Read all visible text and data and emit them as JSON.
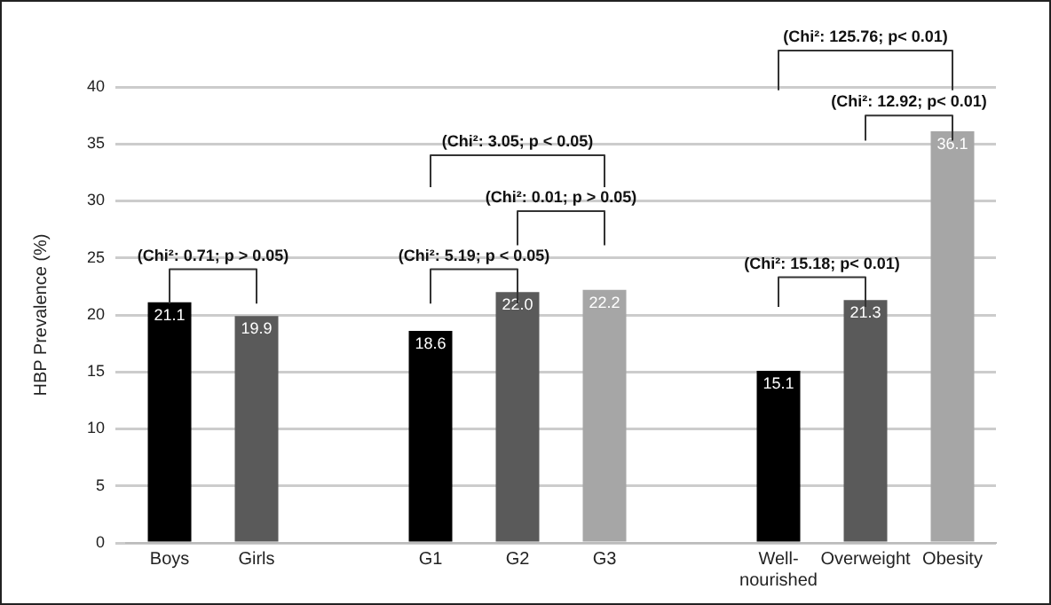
{
  "chart_data": {
    "type": "bar",
    "categories": [
      "Boys",
      "Girls",
      null,
      "G1",
      "G2",
      "G3",
      null,
      "Well-nourished",
      "Overweight",
      "Obesity"
    ],
    "values": [
      21.1,
      19.9,
      null,
      18.6,
      22.0,
      22.2,
      null,
      15.1,
      21.3,
      36.1
    ],
    "colors": [
      "#000000",
      "#5a5a5a",
      "#ffffff",
      "#000000",
      "#5a5a5a",
      "#a6a6a6",
      "#ffffff",
      "#000000",
      "#5a5a5a",
      "#a6a6a6"
    ],
    "value_labels": [
      "21.1",
      "19.9",
      null,
      "18.6",
      "22.0",
      "22.2",
      null,
      "15.1",
      "21.3",
      "36.1"
    ],
    "ylabel": "HBP Prevalence (%)",
    "ylim": [
      0,
      40
    ],
    "yticks": [
      0,
      5,
      10,
      15,
      20,
      25,
      30,
      35,
      40
    ],
    "grid": "y",
    "legend": false,
    "annotations": [
      "(Chi²: 0.71; p > 0.05)",
      "(Chi²: 5.19; p < 0.05)",
      "(Chi²: 3.05; p < 0.05)",
      "(Chi²: 0.01; p > 0.05)",
      "(Chi²: 15.18; p< 0.01)",
      "(Chi²: 12.92; p< 0.01)",
      "(Chi²: 125.76; p< 0.01)"
    ]
  }
}
